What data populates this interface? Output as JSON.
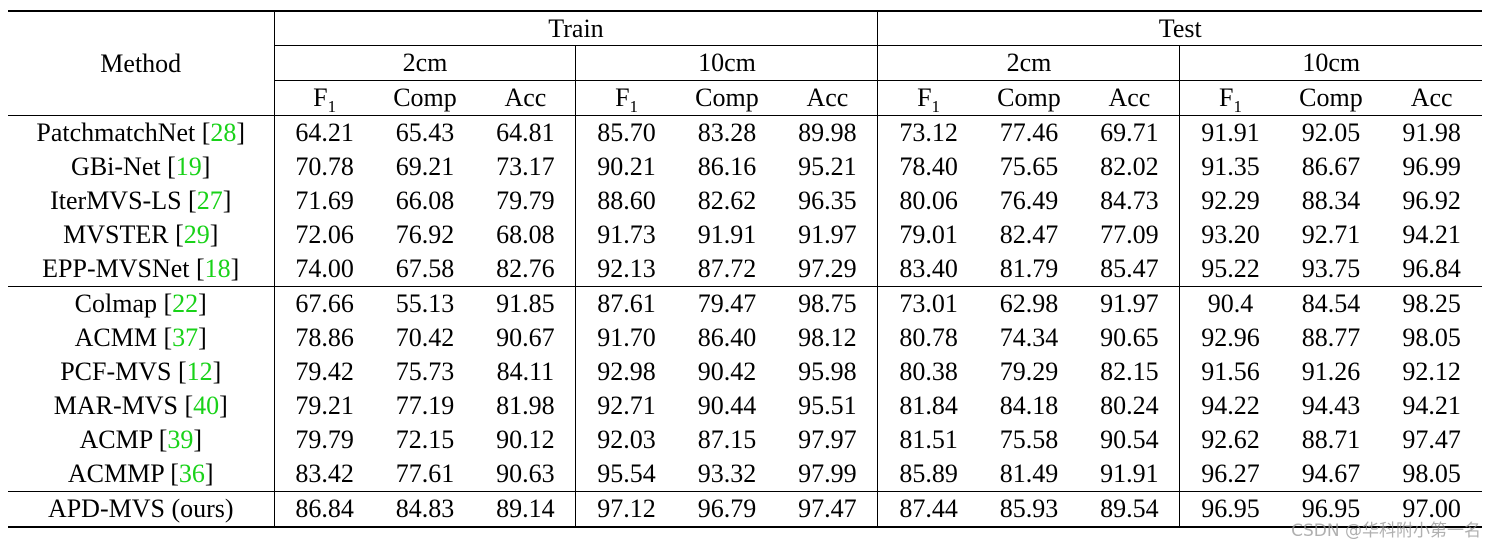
{
  "header": {
    "method": "Method",
    "train": "Train",
    "test": "Test",
    "thresholds": [
      "2cm",
      "10cm",
      "2cm",
      "10cm"
    ],
    "metric_f": "F",
    "metric_f_sub": "1",
    "metric_comp": "Comp",
    "metric_acc": "Acc"
  },
  "rows": [
    {
      "name": "PatchmatchNet",
      "ref": "28",
      "v": [
        "64.21",
        "65.43",
        "64.81",
        "85.70",
        "83.28",
        "89.98",
        "73.12",
        "77.46",
        "69.71",
        "91.91",
        "92.05",
        "91.98"
      ],
      "bold": []
    },
    {
      "name": "GBi-Net",
      "ref": "19",
      "v": [
        "70.78",
        "69.21",
        "73.17",
        "90.21",
        "86.16",
        "95.21",
        "78.40",
        "75.65",
        "82.02",
        "91.35",
        "86.67",
        "96.99"
      ],
      "bold": []
    },
    {
      "name": "IterMVS-LS",
      "ref": "27",
      "v": [
        "71.69",
        "66.08",
        "79.79",
        "88.60",
        "82.62",
        "96.35",
        "80.06",
        "76.49",
        "84.73",
        "92.29",
        "88.34",
        "96.92"
      ],
      "bold": []
    },
    {
      "name": "MVSTER",
      "ref": "29",
      "v": [
        "72.06",
        "76.92",
        "68.08",
        "91.73",
        "91.91",
        "91.97",
        "79.01",
        "82.47",
        "77.09",
        "93.20",
        "92.71",
        "94.21"
      ],
      "bold": []
    },
    {
      "name": "EPP-MVSNet",
      "ref": "18",
      "v": [
        "74.00",
        "67.58",
        "82.76",
        "92.13",
        "87.72",
        "97.29",
        "83.40",
        "81.79",
        "85.47",
        "95.22",
        "93.75",
        "96.84"
      ],
      "bold": []
    },
    {
      "name": "Colmap",
      "ref": "22",
      "v": [
        "67.66",
        "55.13",
        "91.85",
        "87.61",
        "79.47",
        "98.75",
        "73.01",
        "62.98",
        "91.97",
        "90.4",
        "84.54",
        "98.25"
      ],
      "bold": [
        2,
        5,
        8,
        11
      ]
    },
    {
      "name": "ACMM",
      "ref": "37",
      "v": [
        "78.86",
        "70.42",
        "90.67",
        "91.70",
        "86.40",
        "98.12",
        "80.78",
        "74.34",
        "90.65",
        "92.96",
        "88.77",
        "98.05"
      ],
      "bold": []
    },
    {
      "name": "PCF-MVS",
      "ref": "12",
      "v": [
        "79.42",
        "75.73",
        "84.11",
        "92.98",
        "90.42",
        "95.98",
        "80.38",
        "79.29",
        "82.15",
        "91.56",
        "91.26",
        "92.12"
      ],
      "bold": []
    },
    {
      "name": "MAR-MVS",
      "ref": "40",
      "v": [
        "79.21",
        "77.19",
        "81.98",
        "92.71",
        "90.44",
        "95.51",
        "81.84",
        "84.18",
        "80.24",
        "94.22",
        "94.43",
        "94.21"
      ],
      "bold": []
    },
    {
      "name": "ACMP",
      "ref": "39",
      "v": [
        "79.79",
        "72.15",
        "90.12",
        "92.03",
        "87.15",
        "97.97",
        "81.51",
        "75.58",
        "90.54",
        "92.62",
        "88.71",
        "97.47"
      ],
      "bold": []
    },
    {
      "name": "ACMMP",
      "ref": "36",
      "v": [
        "83.42",
        "77.61",
        "90.63",
        "95.54",
        "93.32",
        "97.99",
        "85.89",
        "81.49",
        "91.91",
        "96.27",
        "94.67",
        "98.05"
      ],
      "bold": []
    },
    {
      "name": "APD-MVS (ours)",
      "ref": "",
      "v": [
        "86.84",
        "84.83",
        "89.14",
        "97.12",
        "96.79",
        "97.47",
        "87.44",
        "85.93",
        "89.54",
        "96.95",
        "96.95",
        "97.00"
      ],
      "bold": [
        0,
        1,
        3,
        4,
        6,
        7,
        9,
        10
      ]
    }
  ],
  "watermark": "CSDN @华科附小第一名"
}
